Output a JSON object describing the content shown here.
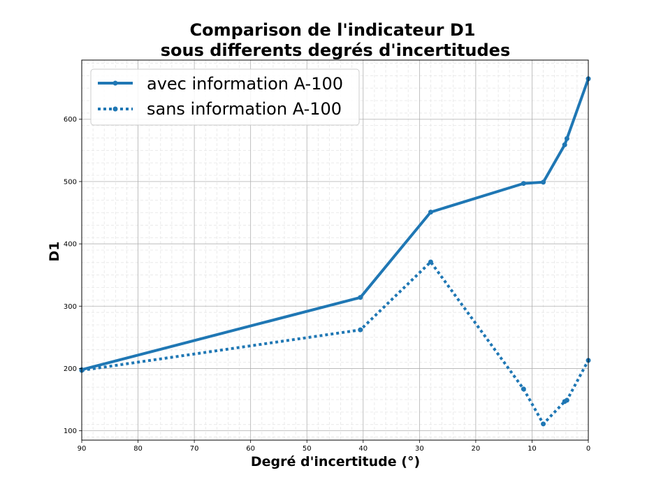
{
  "chart_data": {
    "type": "line",
    "title_line1": "Comparison de l'indicateur D1",
    "title_line2": "sous differents degrés d'incertitudes",
    "xlabel": "Degré d'incertitude (°)",
    "ylabel": "D1",
    "xlim": [
      90,
      0
    ],
    "ylim": [
      85,
      695
    ],
    "x_ticks": [
      90,
      80,
      70,
      60,
      50,
      40,
      30,
      20,
      10,
      0
    ],
    "y_ticks": [
      100,
      200,
      300,
      400,
      500,
      600
    ],
    "grid": "major and minor",
    "legend_position": "top-left",
    "color": "#1f77b4",
    "series": [
      {
        "name": "avec information A-100",
        "style": "solid",
        "x": [
          90,
          40.5,
          28,
          11.5,
          8,
          4.2,
          3.8,
          0
        ],
        "y": [
          198,
          314,
          451,
          497,
          499,
          559,
          569,
          665
        ]
      },
      {
        "name": "sans information A-100",
        "style": "dotted",
        "x": [
          90,
          40.5,
          28,
          11.5,
          8,
          4.2,
          3.8,
          0
        ],
        "y": [
          197,
          262,
          371,
          167,
          111,
          147,
          149,
          213
        ]
      }
    ]
  }
}
